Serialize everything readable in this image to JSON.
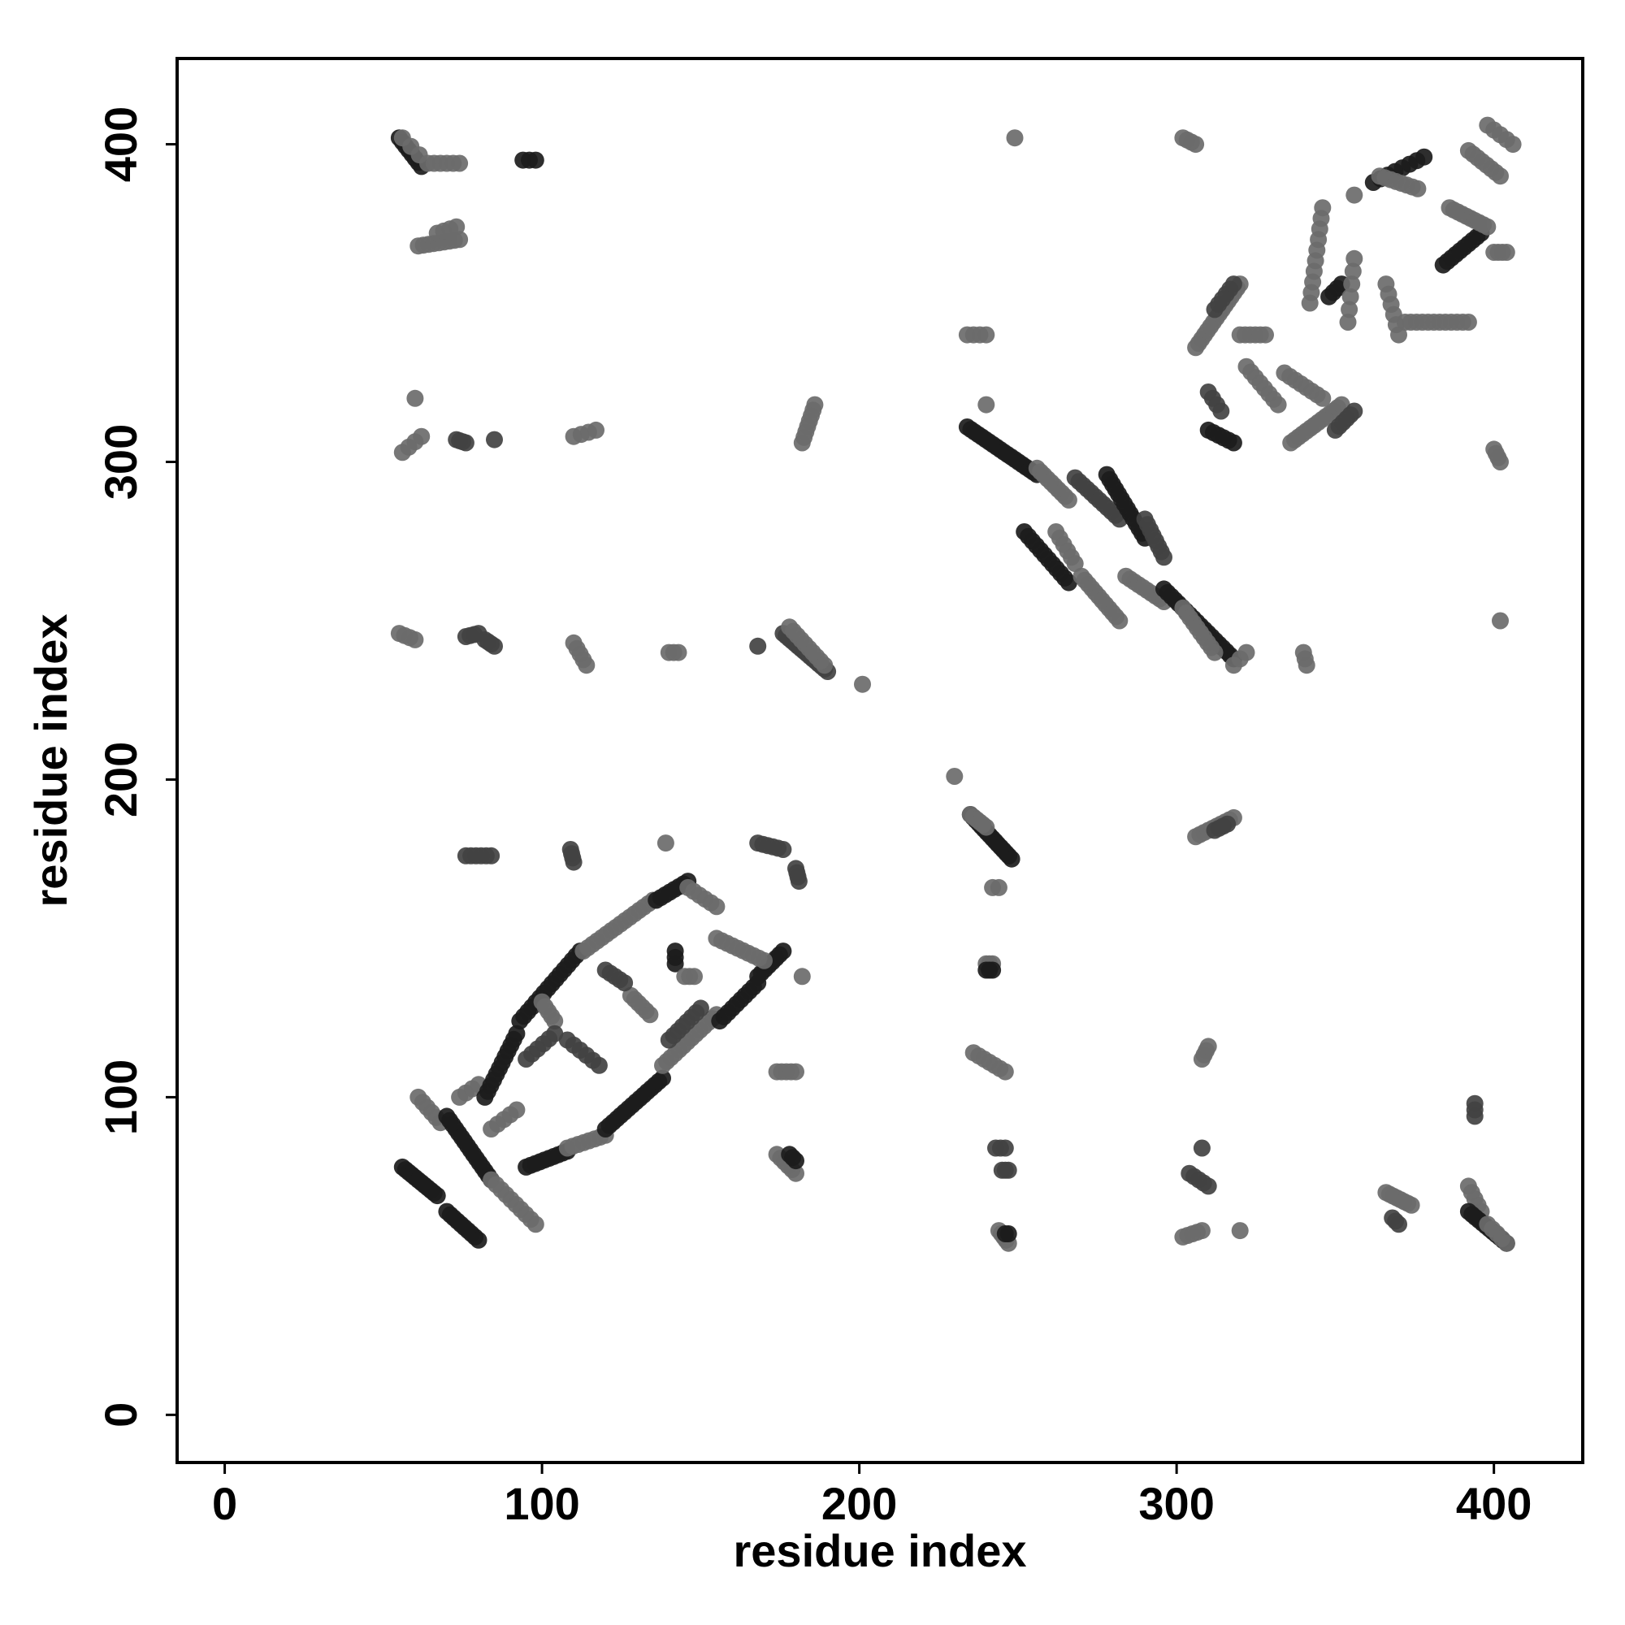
{
  "chart_data": {
    "type": "scatter",
    "title": "",
    "xlabel": "residue index",
    "ylabel": "residue index",
    "xlim": [
      -15,
      428
    ],
    "ylim": [
      -15,
      427
    ],
    "x_ticks": [
      0,
      100,
      200,
      300,
      400
    ],
    "y_ticks": [
      0,
      100,
      200,
      300,
      400
    ],
    "grid": false,
    "legend": "none",
    "colors": {
      "dark": "#1c1c1c",
      "mid": "#424242",
      "light": "#6b6b6b",
      "axis": "#000000"
    },
    "segments": [
      [
        55,
        402,
        62,
        393,
        "dark",
        8
      ],
      [
        56,
        402,
        64,
        394,
        "light",
        4
      ],
      [
        66,
        394,
        74,
        394,
        "light",
        5
      ],
      [
        94,
        395,
        98,
        395,
        "dark",
        3
      ],
      [
        61,
        368,
        74,
        370,
        "light",
        9
      ],
      [
        67,
        372,
        73,
        374,
        "light",
        4
      ],
      [
        56,
        303,
        62,
        308,
        "light",
        4
      ],
      [
        60,
        320,
        60,
        320,
        "light",
        1
      ],
      [
        73,
        307,
        76,
        306,
        "mid",
        4
      ],
      [
        85,
        307,
        85,
        307,
        "mid",
        1
      ],
      [
        110,
        308,
        117,
        310,
        "light",
        4
      ],
      [
        55,
        246,
        60,
        244,
        "light",
        4
      ],
      [
        76,
        245,
        80,
        246,
        "mid",
        4
      ],
      [
        82,
        244,
        85,
        242,
        "mid",
        4
      ],
      [
        110,
        243,
        114,
        236,
        "light",
        5
      ],
      [
        140,
        240,
        143,
        240,
        "light",
        3
      ],
      [
        168,
        242,
        168,
        242,
        "mid",
        1
      ],
      [
        176,
        246,
        190,
        234,
        "mid",
        16
      ],
      [
        178,
        248,
        189,
        236,
        "light",
        10
      ],
      [
        201,
        230,
        201,
        230,
        "light",
        1
      ],
      [
        182,
        306,
        186,
        318,
        "light",
        8
      ],
      [
        76,
        176,
        84,
        176,
        "mid",
        6
      ],
      [
        109,
        178,
        110,
        174,
        "mid",
        4
      ],
      [
        139,
        180,
        139,
        180,
        "light",
        1
      ],
      [
        168,
        180,
        176,
        178,
        "mid",
        6
      ],
      [
        180,
        172,
        181,
        168,
        "mid",
        4
      ],
      [
        56,
        78,
        67,
        69,
        "dark",
        12
      ],
      [
        70,
        64,
        80,
        55,
        "dark",
        10
      ],
      [
        61,
        100,
        68,
        92,
        "light",
        6
      ],
      [
        70,
        94,
        84,
        74,
        "dark",
        16
      ],
      [
        84,
        74,
        98,
        60,
        "light",
        10
      ],
      [
        74,
        100,
        80,
        104,
        "light",
        4
      ],
      [
        82,
        100,
        92,
        120,
        "dark",
        12
      ],
      [
        93,
        124,
        112,
        146,
        "dark",
        16
      ],
      [
        113,
        146,
        135,
        162,
        "light",
        16
      ],
      [
        136,
        162,
        146,
        168,
        "dark",
        8
      ],
      [
        146,
        166,
        155,
        160,
        "light",
        6
      ],
      [
        95,
        78,
        108,
        83,
        "dark",
        10
      ],
      [
        108,
        84,
        120,
        88,
        "light",
        8
      ],
      [
        120,
        90,
        138,
        106,
        "dark",
        16
      ],
      [
        138,
        110,
        155,
        126,
        "light",
        14
      ],
      [
        156,
        124,
        168,
        136,
        "dark",
        10
      ],
      [
        168,
        138,
        176,
        146,
        "dark",
        8
      ],
      [
        155,
        150,
        170,
        143,
        "light",
        10
      ],
      [
        140,
        118,
        150,
        128,
        "mid",
        8
      ],
      [
        128,
        132,
        134,
        126,
        "light",
        6
      ],
      [
        120,
        140,
        126,
        136,
        "mid",
        5
      ],
      [
        100,
        130,
        104,
        124,
        "light",
        5
      ],
      [
        108,
        118,
        118,
        110,
        "mid",
        6
      ],
      [
        84,
        90,
        92,
        96,
        "light",
        5
      ],
      [
        95,
        112,
        104,
        120,
        "mid",
        6
      ],
      [
        142,
        146,
        142,
        142,
        "dark",
        3
      ],
      [
        145,
        138,
        148,
        138,
        "light",
        3
      ],
      [
        182,
        138,
        182,
        138,
        "light",
        1
      ],
      [
        174,
        108,
        180,
        108,
        "light",
        5
      ],
      [
        174,
        82,
        180,
        76,
        "light",
        6
      ],
      [
        178,
        82,
        180,
        80,
        "dark",
        3
      ],
      [
        230,
        201,
        230,
        201,
        "light",
        1
      ],
      [
        235,
        189,
        248,
        175,
        "dark",
        16
      ],
      [
        235,
        189,
        240,
        185,
        "light",
        6
      ],
      [
        242,
        166,
        244,
        166,
        "light",
        2
      ],
      [
        240,
        142,
        242,
        142,
        "light",
        3
      ],
      [
        240,
        140,
        242,
        140,
        "dark",
        3
      ],
      [
        236,
        114,
        246,
        108,
        "light",
        7
      ],
      [
        243,
        84,
        246,
        84,
        "mid",
        3
      ],
      [
        245,
        77,
        247,
        77,
        "mid",
        3
      ],
      [
        244,
        58,
        247,
        54,
        "light",
        5
      ],
      [
        246,
        57,
        247,
        57,
        "dark",
        2
      ],
      [
        249,
        402,
        249,
        402,
        "light",
        1
      ],
      [
        234,
        311,
        256,
        296,
        "dark",
        20
      ],
      [
        240,
        318,
        240,
        318,
        "light",
        1
      ],
      [
        234,
        340,
        240,
        340,
        "light",
        4
      ],
      [
        256,
        298,
        266,
        288,
        "light",
        10
      ],
      [
        252,
        278,
        266,
        262,
        "dark",
        12
      ],
      [
        262,
        278,
        268,
        268,
        "light",
        6
      ],
      [
        268,
        295,
        282,
        282,
        "mid",
        12
      ],
      [
        270,
        264,
        282,
        250,
        "light",
        12
      ],
      [
        278,
        296,
        290,
        276,
        "dark",
        14
      ],
      [
        284,
        264,
        296,
        256,
        "light",
        10
      ],
      [
        290,
        282,
        296,
        270,
        "mid",
        8
      ],
      [
        296,
        260,
        318,
        238,
        "dark",
        20
      ],
      [
        302,
        254,
        312,
        240,
        "light",
        10
      ],
      [
        318,
        236,
        322,
        240,
        "light",
        3
      ],
      [
        340,
        240,
        341,
        236,
        "light",
        3
      ],
      [
        402,
        250,
        402,
        250,
        "light",
        1
      ],
      [
        302,
        402,
        306,
        400,
        "light",
        4
      ],
      [
        310,
        310,
        318,
        306,
        "dark",
        6
      ],
      [
        310,
        322,
        314,
        316,
        "mid",
        4
      ],
      [
        306,
        336,
        320,
        356,
        "light",
        16
      ],
      [
        312,
        348,
        318,
        356,
        "mid",
        6
      ],
      [
        320,
        340,
        328,
        340,
        "light",
        6
      ],
      [
        322,
        330,
        332,
        318,
        "light",
        8
      ],
      [
        334,
        328,
        346,
        320,
        "light",
        8
      ],
      [
        336,
        306,
        352,
        318,
        "light",
        14
      ],
      [
        350,
        310,
        356,
        316,
        "mid",
        6
      ],
      [
        342,
        350,
        346,
        380,
        "light",
        10
      ],
      [
        348,
        352,
        352,
        356,
        "dark",
        4
      ],
      [
        354,
        344,
        356,
        364,
        "light",
        6
      ],
      [
        356,
        384,
        356,
        384,
        "light",
        1
      ],
      [
        366,
        356,
        370,
        340,
        "light",
        6
      ],
      [
        362,
        388,
        378,
        396,
        "dark",
        8
      ],
      [
        364,
        390,
        376,
        386,
        "light",
        8
      ],
      [
        372,
        344,
        392,
        344,
        "light",
        12
      ],
      [
        384,
        362,
        396,
        372,
        "dark",
        10
      ],
      [
        386,
        380,
        398,
        374,
        "light",
        10
      ],
      [
        392,
        398,
        402,
        390,
        "light",
        8
      ],
      [
        398,
        406,
        406,
        400,
        "light",
        5
      ],
      [
        400,
        366,
        404,
        366,
        "light",
        4
      ],
      [
        400,
        304,
        402,
        300,
        "light",
        4
      ],
      [
        306,
        182,
        318,
        188,
        "light",
        10
      ],
      [
        312,
        184,
        316,
        186,
        "mid",
        4
      ],
      [
        308,
        112,
        310,
        116,
        "light",
        4
      ],
      [
        308,
        84,
        308,
        84,
        "mid",
        1
      ],
      [
        304,
        76,
        310,
        72,
        "mid",
        5
      ],
      [
        302,
        56,
        308,
        58,
        "light",
        5
      ],
      [
        320,
        58,
        320,
        58,
        "light",
        1
      ],
      [
        366,
        70,
        374,
        66,
        "light",
        8
      ],
      [
        368,
        62,
        370,
        60,
        "mid",
        3
      ],
      [
        394,
        98,
        394,
        94,
        "mid",
        3
      ],
      [
        392,
        72,
        396,
        64,
        "light",
        5
      ],
      [
        392,
        64,
        404,
        54,
        "dark",
        12
      ],
      [
        398,
        60,
        404,
        54,
        "light",
        5
      ]
    ]
  }
}
